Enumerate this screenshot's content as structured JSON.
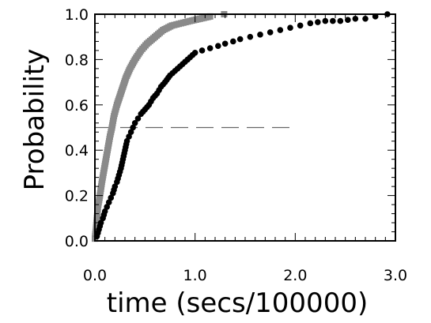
{
  "chart_data": {
    "type": "scatter",
    "title": "",
    "xlabel": "time (secs/100000)",
    "ylabel": "Probability",
    "xlim": [
      0.0,
      3.0
    ],
    "ylim": [
      0.0,
      1.0
    ],
    "xticks": [
      "0.0",
      "1.0",
      "2.0",
      "3.0"
    ],
    "yticks": [
      "0.0",
      "0.2",
      "0.4",
      "0.6",
      "0.8",
      "1.0"
    ],
    "grid": false,
    "legend": "none",
    "reference_line": {
      "y": 0.5,
      "x_range": [
        0.0,
        2.0
      ],
      "style": "dashed"
    },
    "series": [
      {
        "color": "#8a8a8a",
        "x": [
          0.0,
          0.01,
          0.02,
          0.03,
          0.05,
          0.07,
          0.09,
          0.11,
          0.13,
          0.15,
          0.17,
          0.19,
          0.22,
          0.25,
          0.28,
          0.31,
          0.35,
          0.4,
          0.46,
          0.52,
          0.6,
          0.68,
          0.77,
          0.86,
          0.95,
          1.05,
          1.15,
          1.29
        ],
        "y": [
          0.01,
          0.05,
          0.1,
          0.15,
          0.2,
          0.26,
          0.31,
          0.36,
          0.41,
          0.46,
          0.5,
          0.55,
          0.6,
          0.64,
          0.68,
          0.72,
          0.76,
          0.8,
          0.84,
          0.87,
          0.9,
          0.93,
          0.95,
          0.96,
          0.97,
          0.98,
          0.99,
          1.0
        ]
      },
      {
        "color": "#000000",
        "x": [
          0.02,
          0.04,
          0.06,
          0.08,
          0.1,
          0.12,
          0.14,
          0.16,
          0.18,
          0.2,
          0.22,
          0.24,
          0.26,
          0.28,
          0.3,
          0.32,
          0.34,
          0.36,
          0.38,
          0.4,
          0.43,
          0.46,
          0.5,
          0.54,
          0.58,
          0.62,
          0.66,
          0.7,
          0.75,
          0.8,
          0.85,
          0.9,
          0.95,
          1.0,
          1.07,
          1.15,
          1.23,
          1.3,
          1.38,
          1.45,
          1.55,
          1.65,
          1.75,
          1.85,
          1.95,
          2.05,
          2.15,
          2.3,
          2.45,
          2.6,
          2.7,
          2.8,
          2.92
        ],
        "y": [
          0.02,
          0.05,
          0.08,
          0.1,
          0.13,
          0.15,
          0.17,
          0.19,
          0.21,
          0.24,
          0.26,
          0.29,
          0.32,
          0.36,
          0.4,
          0.44,
          0.46,
          0.48,
          0.5,
          0.52,
          0.54,
          0.56,
          0.58,
          0.6,
          0.63,
          0.65,
          0.68,
          0.7,
          0.73,
          0.75,
          0.77,
          0.79,
          0.81,
          0.83,
          0.84,
          0.85,
          0.86,
          0.87,
          0.88,
          0.89,
          0.9,
          0.91,
          0.92,
          0.93,
          0.94,
          0.95,
          0.96,
          0.97,
          0.97,
          0.98,
          0.98,
          0.99,
          1.0
        ]
      }
    ]
  }
}
